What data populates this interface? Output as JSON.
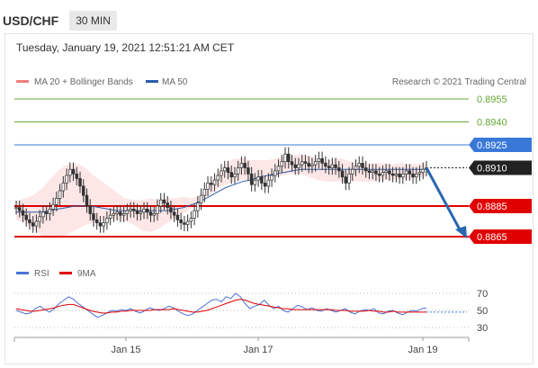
{
  "header": {
    "pair": "USD/CHF",
    "timeframe": "30 MIN"
  },
  "datetime": "Tuesday, January 19, 2021 12:51:21 AM CET",
  "legend": {
    "bollinger": "MA 20 + Bollinger Bands",
    "ma50": "MA 50"
  },
  "credit": "Research © 2021 Trading Central",
  "rsi_legend": {
    "rsi": "RSI",
    "ma": "9MA"
  },
  "colors": {
    "bollinger": "#f08080",
    "ma50": "#2b5ea8",
    "target": "#66a833",
    "resistance": "#3a78d8",
    "support": "#e00000",
    "current": "#222222",
    "arrow": "#2a68b0",
    "rsi": "#4a72d8",
    "rsi_ma": "#e00000"
  },
  "chart_data": [
    {
      "type": "line",
      "instrument": "USD/CHF",
      "timeframe": "30 MIN",
      "xlabels": [
        "Jan 15",
        "Jan 17",
        "Jan 19"
      ],
      "price_levels": [
        {
          "value": 0.8955,
          "label": "0.8955",
          "kind": "target"
        },
        {
          "value": 0.894,
          "label": "0.8940",
          "kind": "target"
        },
        {
          "value": 0.8925,
          "label": "0.8925",
          "kind": "resistance"
        },
        {
          "value": 0.891,
          "label": "0.8910",
          "kind": "current"
        },
        {
          "value": 0.8885,
          "label": "0.8885",
          "kind": "support"
        },
        {
          "value": 0.8865,
          "label": "0.8865",
          "kind": "support"
        }
      ],
      "close": [
        0.8884,
        0.8882,
        0.8879,
        0.8876,
        0.8874,
        0.8872,
        0.8875,
        0.8878,
        0.8881,
        0.888,
        0.8883,
        0.8886,
        0.889,
        0.8895,
        0.89,
        0.8905,
        0.8909,
        0.8906,
        0.8903,
        0.8898,
        0.8892,
        0.8885,
        0.888,
        0.8876,
        0.8874,
        0.8872,
        0.8874,
        0.8877,
        0.8879,
        0.888,
        0.8881,
        0.8879,
        0.888,
        0.8882,
        0.8883,
        0.8882,
        0.888,
        0.8881,
        0.8883,
        0.8881,
        0.8879,
        0.888,
        0.8885,
        0.8889,
        0.8887,
        0.8884,
        0.8881,
        0.8879,
        0.8876,
        0.8874,
        0.8873,
        0.8875,
        0.8877,
        0.8882,
        0.8887,
        0.8892,
        0.8896,
        0.89,
        0.8899,
        0.8902,
        0.8905,
        0.8908,
        0.891,
        0.8907,
        0.8904,
        0.8906,
        0.891,
        0.8913,
        0.891,
        0.8906,
        0.8899,
        0.8902,
        0.8904,
        0.89,
        0.8898,
        0.8902,
        0.8905,
        0.8908,
        0.8911,
        0.8914,
        0.8919,
        0.8914,
        0.8912,
        0.891,
        0.8912,
        0.8914,
        0.8913,
        0.8911,
        0.8912,
        0.8914,
        0.8916,
        0.8913,
        0.8911,
        0.891,
        0.8912,
        0.891,
        0.8908,
        0.8904,
        0.89,
        0.8906,
        0.8909,
        0.8911,
        0.8913,
        0.891,
        0.8908,
        0.8907,
        0.8908,
        0.8906,
        0.8905,
        0.8907,
        0.8908,
        0.8906,
        0.8905,
        0.8906,
        0.8904,
        0.8906,
        0.8908,
        0.8906,
        0.8904,
        0.8906,
        0.8907,
        0.8909,
        0.891
      ],
      "bb_upper": [
        0.8888,
        0.889,
        0.8892,
        0.8896,
        0.8902,
        0.8908,
        0.8912,
        0.8913,
        0.8911,
        0.8906,
        0.8902,
        0.8898,
        0.8894,
        0.889,
        0.8889,
        0.8889,
        0.889,
        0.8889,
        0.889,
        0.889,
        0.8891,
        0.889,
        0.8892,
        0.8898,
        0.8906,
        0.8912,
        0.8916,
        0.8916,
        0.8915,
        0.8915,
        0.8915,
        0.8916,
        0.8918,
        0.8918,
        0.8919,
        0.8918,
        0.8916,
        0.8914,
        0.8916,
        0.8916,
        0.8914,
        0.8913,
        0.8913,
        0.8913,
        0.8913,
        0.8912,
        0.8913,
        0.8912,
        0.8913,
        0.8913
      ],
      "bb_lower": [
        0.8876,
        0.8874,
        0.887,
        0.8866,
        0.8864,
        0.8864,
        0.8866,
        0.8869,
        0.8872,
        0.8874,
        0.8875,
        0.8876,
        0.8876,
        0.8875,
        0.8873,
        0.8869,
        0.8868,
        0.887,
        0.8874,
        0.8877,
        0.888,
        0.8884,
        0.8888,
        0.8892,
        0.8896,
        0.8899,
        0.8901,
        0.8902,
        0.8902,
        0.8902,
        0.8903,
        0.8904,
        0.8905,
        0.8906,
        0.8906,
        0.8904,
        0.8902,
        0.8901,
        0.8901,
        0.8901,
        0.8901,
        0.8901,
        0.8901,
        0.8901,
        0.8902,
        0.8902,
        0.8903,
        0.8903,
        0.8904,
        0.8904
      ],
      "ma50": [
        0.8881,
        0.8881,
        0.8881,
        0.8881,
        0.8882,
        0.8883,
        0.8884,
        0.8885,
        0.8885,
        0.8885,
        0.8884,
        0.8883,
        0.8882,
        0.8882,
        0.8882,
        0.8882,
        0.8882,
        0.8882,
        0.8882,
        0.8883,
        0.8884,
        0.8886,
        0.8888,
        0.8891,
        0.8894,
        0.8897,
        0.8899,
        0.8901,
        0.8902,
        0.8904,
        0.8905,
        0.8906,
        0.8907,
        0.8908,
        0.8909,
        0.8909,
        0.8909,
        0.8909,
        0.8909,
        0.8909,
        0.8909,
        0.8909,
        0.8909,
        0.8909,
        0.8909,
        0.8909,
        0.8909,
        0.8909,
        0.8909,
        0.8909
      ],
      "projection": {
        "from": 0.891,
        "to": 0.8865
      }
    },
    {
      "type": "line",
      "title": "RSI",
      "yticks": [
        70,
        50,
        30
      ],
      "ylim": [
        25,
        75
      ],
      "series": [
        {
          "name": "RSI",
          "values": [
            50,
            48,
            46,
            47,
            52,
            55,
            51,
            48,
            52,
            58,
            62,
            66,
            63,
            58,
            54,
            50,
            46,
            42,
            44,
            47,
            50,
            49,
            51,
            50,
            52,
            49,
            47,
            50,
            53,
            51,
            50,
            52,
            55,
            53,
            49,
            46,
            44,
            46,
            50,
            54,
            58,
            62,
            63,
            60,
            66,
            64,
            70,
            66,
            58,
            52,
            55,
            57,
            62,
            56,
            52,
            55,
            50,
            48,
            52,
            56,
            54,
            51,
            53,
            50,
            49,
            52,
            50,
            48,
            50,
            52,
            48,
            46,
            49,
            51,
            50,
            52,
            47,
            46,
            49,
            50,
            47,
            45,
            48,
            50,
            49,
            52,
            53
          ]
        },
        {
          "name": "9MA",
          "values": [
            52,
            51,
            50,
            49,
            49,
            50,
            51,
            52,
            53,
            55,
            56,
            57,
            57,
            55,
            53,
            51,
            49,
            48,
            47,
            47,
            48,
            48,
            49,
            49,
            50,
            50,
            50,
            50,
            50,
            51,
            51,
            51,
            51,
            52,
            51,
            50,
            49,
            48,
            48,
            49,
            50,
            52,
            54,
            56,
            58,
            60,
            62,
            63,
            62,
            60,
            58,
            57,
            56,
            55,
            54,
            53,
            52,
            52,
            51,
            51,
            51,
            51,
            51,
            51,
            51,
            51,
            51,
            50,
            50,
            50,
            49,
            49,
            49,
            49,
            50,
            49,
            49,
            48,
            48,
            49,
            48,
            48,
            48,
            48,
            48,
            48,
            48
          ]
        }
      ]
    }
  ]
}
